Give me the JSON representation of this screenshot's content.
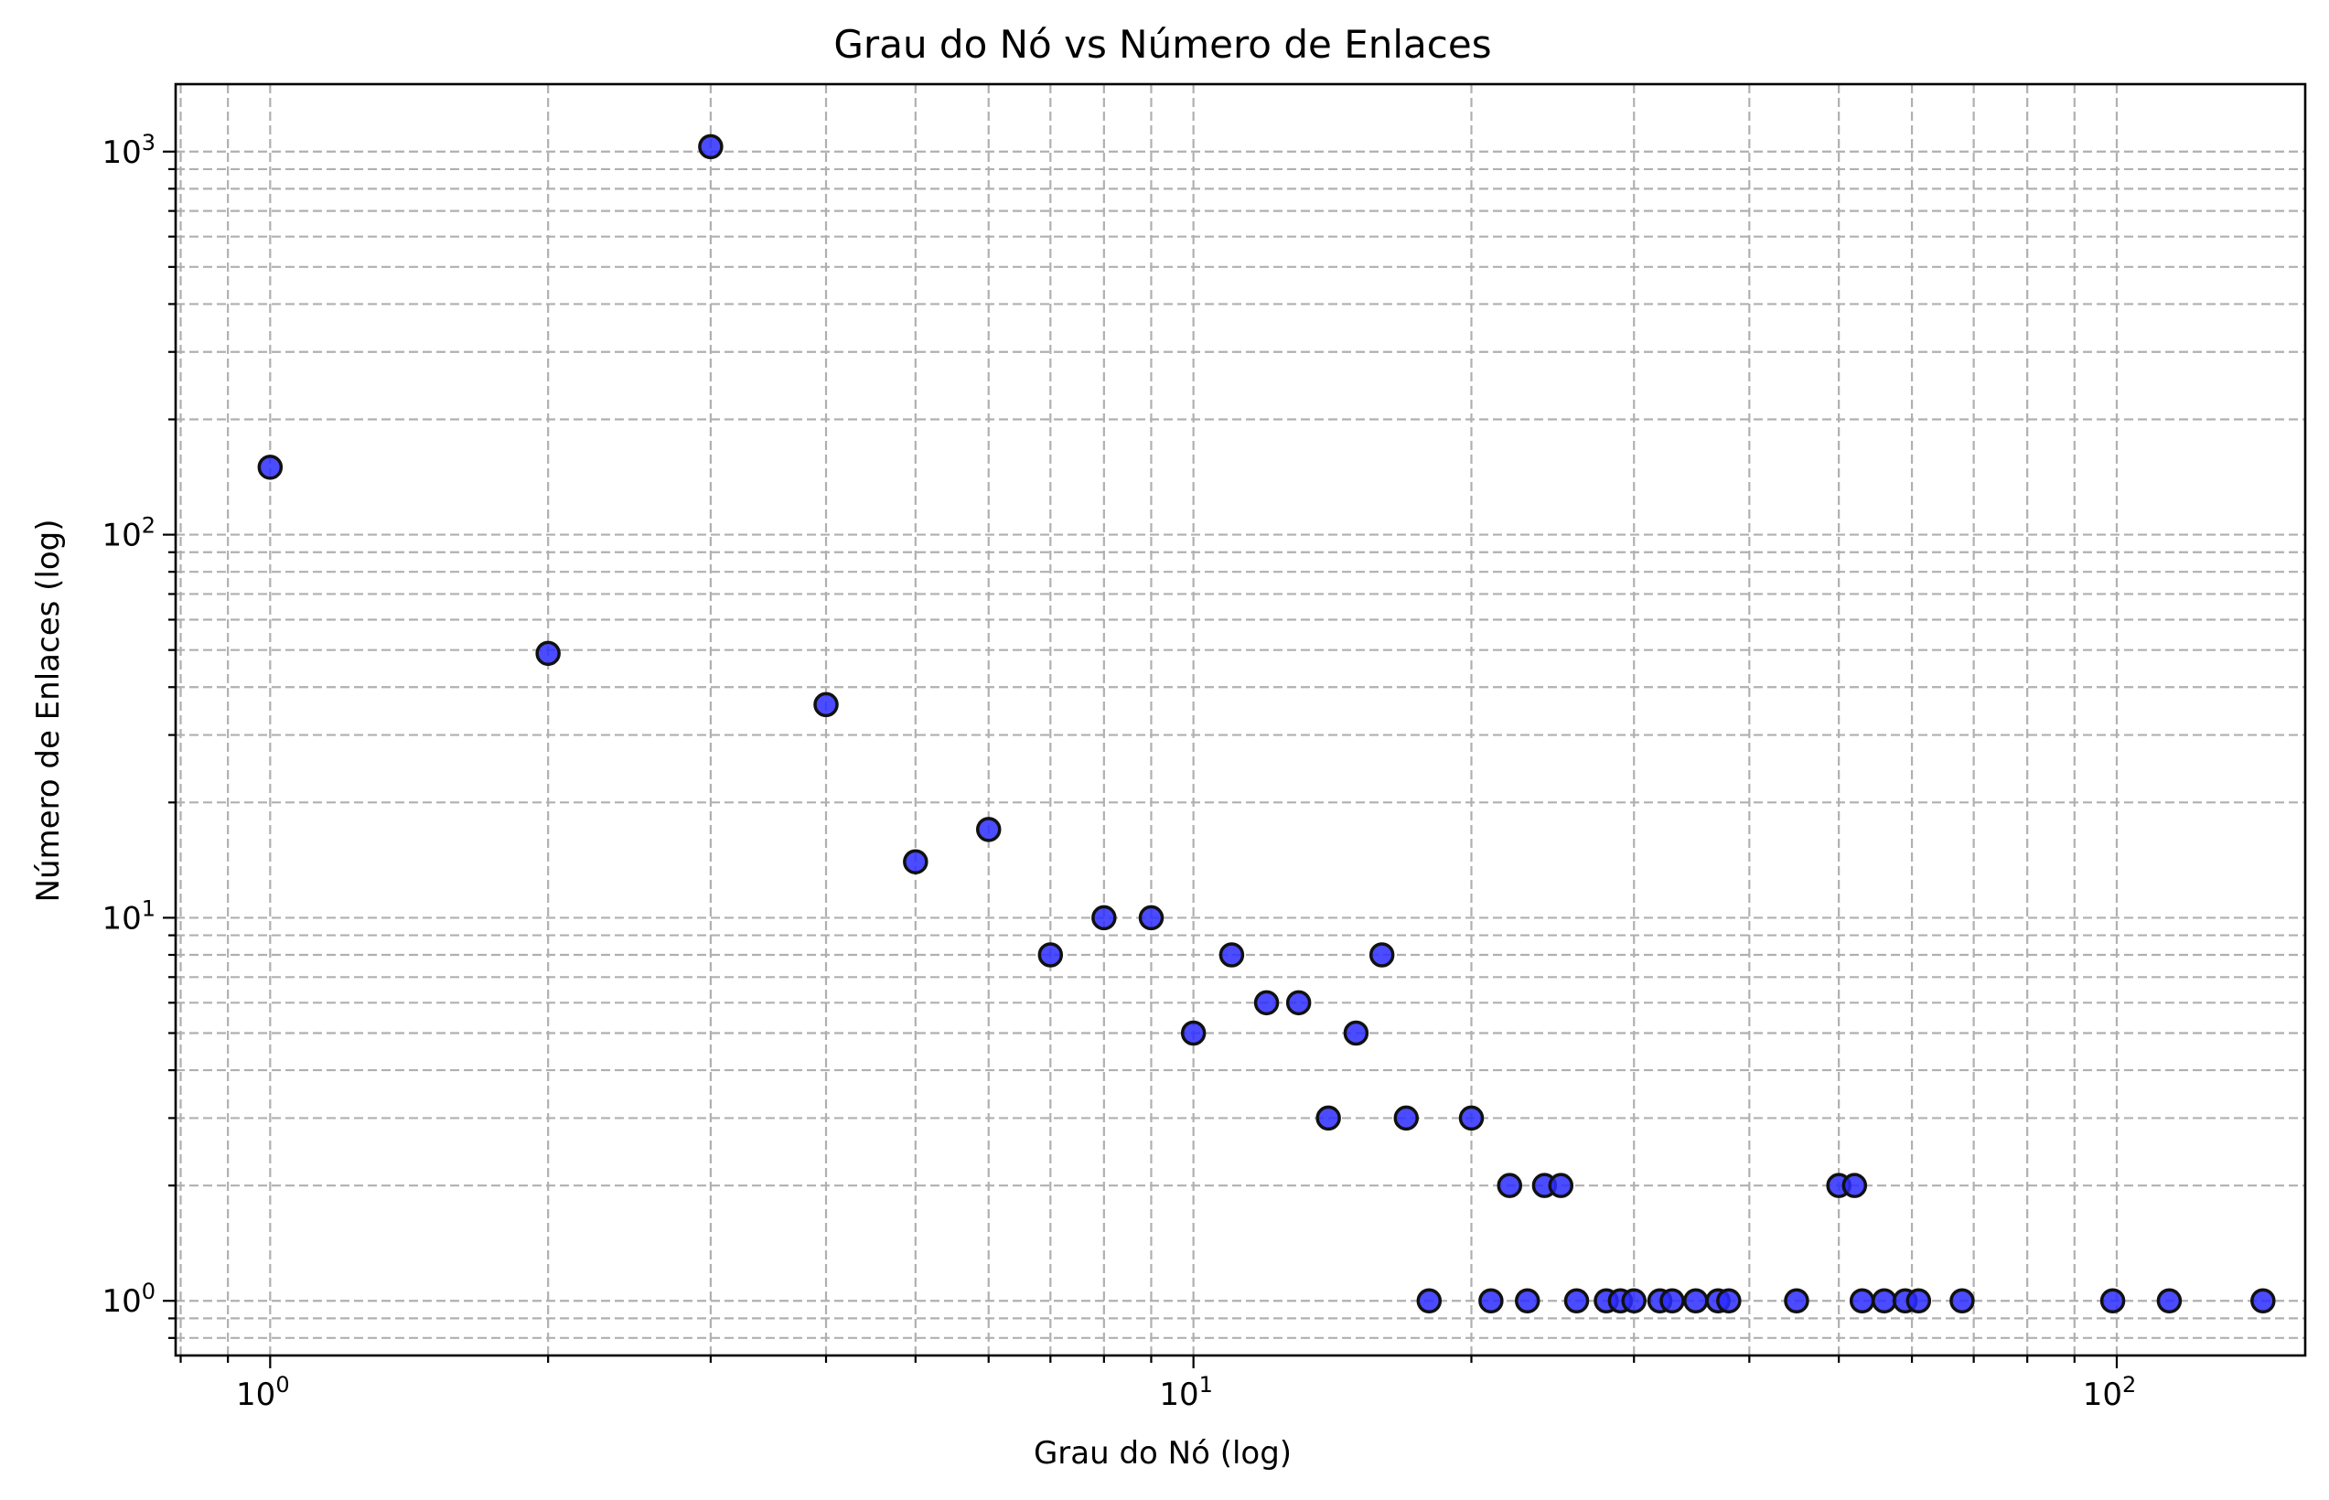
{
  "chart_data": {
    "type": "scatter",
    "title": "Grau do Nó vs Número de Enlaces",
    "xlabel": "Grau do Nó (log)",
    "ylabel": "Número de Enlaces (log)",
    "xscale": "log",
    "yscale": "log",
    "xlim": [
      0.79,
      160
    ],
    "ylim": [
      0.72,
      1500
    ],
    "grid": true,
    "grid_which": "both",
    "x_ticks": [
      {
        "value": 1,
        "base": "10",
        "exp": "0"
      },
      {
        "value": 10,
        "base": "10",
        "exp": "1"
      },
      {
        "value": 100,
        "base": "10",
        "exp": "2"
      }
    ],
    "y_ticks": [
      {
        "value": 1,
        "base": "10",
        "exp": "0"
      },
      {
        "value": 10,
        "base": "10",
        "exp": "1"
      },
      {
        "value": 100,
        "base": "10",
        "exp": "2"
      },
      {
        "value": 1000,
        "base": "10",
        "exp": "3"
      }
    ],
    "marker_color": "#2b2bff",
    "marker_edge_color": "#111111",
    "points": [
      {
        "x": 1,
        "y": 150
      },
      {
        "x": 2,
        "y": 49
      },
      {
        "x": 3,
        "y": 1030
      },
      {
        "x": 4,
        "y": 36
      },
      {
        "x": 5,
        "y": 14
      },
      {
        "x": 6,
        "y": 17
      },
      {
        "x": 7,
        "y": 8
      },
      {
        "x": 8,
        "y": 10
      },
      {
        "x": 9,
        "y": 10
      },
      {
        "x": 10,
        "y": 5
      },
      {
        "x": 11,
        "y": 8
      },
      {
        "x": 12,
        "y": 6
      },
      {
        "x": 13,
        "y": 6
      },
      {
        "x": 14,
        "y": 3
      },
      {
        "x": 15,
        "y": 5
      },
      {
        "x": 16,
        "y": 8
      },
      {
        "x": 17,
        "y": 3
      },
      {
        "x": 18,
        "y": 1
      },
      {
        "x": 20,
        "y": 3
      },
      {
        "x": 21,
        "y": 1
      },
      {
        "x": 22,
        "y": 2
      },
      {
        "x": 23,
        "y": 1
      },
      {
        "x": 24,
        "y": 2
      },
      {
        "x": 25,
        "y": 2
      },
      {
        "x": 26,
        "y": 1
      },
      {
        "x": 28,
        "y": 1
      },
      {
        "x": 29,
        "y": 1
      },
      {
        "x": 30,
        "y": 1
      },
      {
        "x": 32,
        "y": 1
      },
      {
        "x": 33,
        "y": 1
      },
      {
        "x": 35,
        "y": 1
      },
      {
        "x": 37,
        "y": 1
      },
      {
        "x": 38,
        "y": 1
      },
      {
        "x": 45,
        "y": 1
      },
      {
        "x": 50,
        "y": 2
      },
      {
        "x": 52,
        "y": 2
      },
      {
        "x": 53,
        "y": 1
      },
      {
        "x": 56,
        "y": 1
      },
      {
        "x": 59,
        "y": 1
      },
      {
        "x": 61,
        "y": 1
      },
      {
        "x": 68,
        "y": 1
      },
      {
        "x": 99,
        "y": 1
      },
      {
        "x": 114,
        "y": 1
      },
      {
        "x": 144,
        "y": 1
      }
    ]
  }
}
